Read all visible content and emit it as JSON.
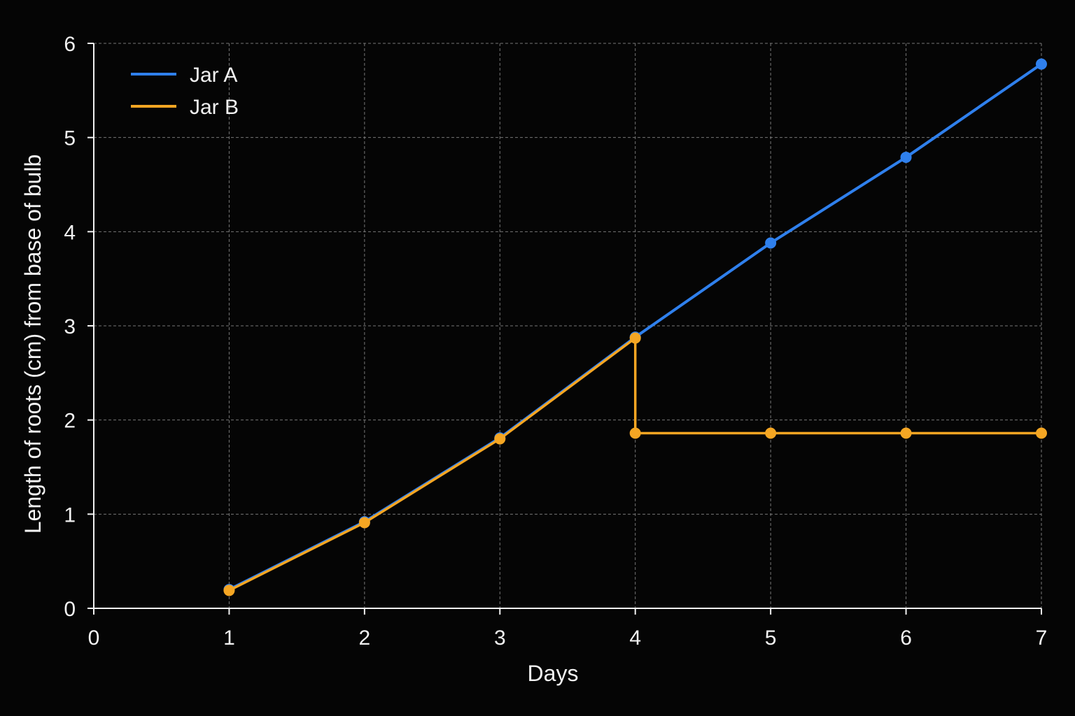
{
  "chart_data": {
    "type": "line",
    "title": "",
    "xlabel": "Days",
    "ylabel": "Length of roots (cm) from base of bulb",
    "xlim": [
      0,
      7
    ],
    "ylim": [
      0,
      6
    ],
    "xticks": [
      0,
      1,
      2,
      3,
      4,
      5,
      6,
      7
    ],
    "yticks": [
      0,
      1,
      2,
      3,
      4,
      5,
      6
    ],
    "grid": true,
    "legend_position": "top-left",
    "background_color": "#050505",
    "series": [
      {
        "name": "Jar A",
        "color": "#2f80ed",
        "x": [
          1,
          2,
          3,
          4,
          5,
          6,
          7
        ],
        "y": [
          0.2,
          0.92,
          1.81,
          2.88,
          3.88,
          4.79,
          5.78
        ]
      },
      {
        "name": "Jar B",
        "color": "#f5a623",
        "x": [
          1,
          2,
          3,
          4,
          4,
          5,
          6,
          7
        ],
        "y": [
          0.19,
          0.91,
          1.8,
          2.87,
          1.86,
          1.86,
          1.86,
          1.86
        ]
      }
    ]
  }
}
